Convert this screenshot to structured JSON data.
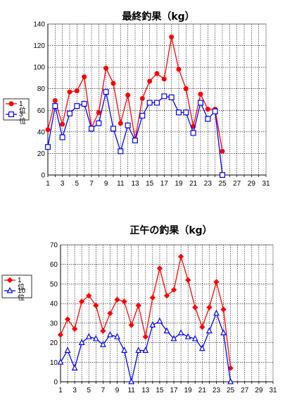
{
  "chart_data": [
    {
      "type": "line",
      "title": "最終釣果（kg）",
      "xlabel": "",
      "ylabel": "",
      "ylim": [
        0,
        140
      ],
      "yticks": [
        0,
        20,
        40,
        60,
        80,
        100,
        120,
        140
      ],
      "xticks": [
        1,
        3,
        5,
        7,
        9,
        11,
        13,
        15,
        17,
        19,
        21,
        23,
        25,
        27,
        29,
        31
      ],
      "grid": true,
      "legend": "left",
      "x": [
        1,
        2,
        3,
        4,
        5,
        6,
        7,
        8,
        9,
        10,
        11,
        12,
        13,
        14,
        15,
        16,
        17,
        18,
        19,
        20,
        21,
        22,
        23,
        24,
        25
      ],
      "series": [
        {
          "name": "1位",
          "color": "#ff0000",
          "marker": "circle",
          "values": [
            42,
            69,
            47,
            77,
            78,
            91,
            44,
            58,
            99,
            85,
            48,
            74,
            33,
            71,
            87,
            94,
            89,
            128,
            98,
            80,
            45,
            75,
            61,
            61,
            22
          ]
        },
        {
          "name": "3位",
          "color": "#0000ff",
          "marker": "square",
          "values": [
            26,
            64,
            35,
            57,
            64,
            66,
            43,
            48,
            77,
            43,
            22,
            46,
            32,
            55,
            67,
            67,
            73,
            72,
            58,
            58,
            39,
            67,
            52,
            59,
            0
          ]
        }
      ]
    },
    {
      "type": "line",
      "title": "正午の釣果（kg）",
      "xlabel": "",
      "ylabel": "",
      "ylim": [
        0,
        70
      ],
      "yticks": [
        0,
        10,
        20,
        30,
        40,
        50,
        60,
        70
      ],
      "xticks": [
        1,
        3,
        5,
        7,
        9,
        11,
        13,
        15,
        17,
        19,
        21,
        23,
        25,
        27,
        29,
        31
      ],
      "grid": true,
      "legend": "left",
      "x": [
        1,
        2,
        3,
        4,
        5,
        6,
        7,
        8,
        9,
        10,
        11,
        12,
        13,
        14,
        15,
        16,
        17,
        18,
        19,
        20,
        21,
        22,
        23,
        24,
        25
      ],
      "series": [
        {
          "name": "1位",
          "color": "#ff0000",
          "marker": "diamond",
          "values": [
            24,
            32,
            27,
            41,
            44,
            39,
            26,
            35,
            42,
            41,
            29,
            39,
            23,
            43,
            58,
            44,
            47,
            64,
            52,
            38,
            28,
            38,
            51,
            37,
            7
          ]
        },
        {
          "name": "10位",
          "color": "#0000ff",
          "marker": "triangle",
          "values": [
            10,
            16,
            7,
            20,
            23,
            22,
            19,
            24,
            23,
            16,
            0,
            16,
            16,
            29,
            31,
            26,
            22,
            25,
            23,
            22,
            17,
            26,
            35,
            25,
            0
          ]
        }
      ]
    }
  ]
}
